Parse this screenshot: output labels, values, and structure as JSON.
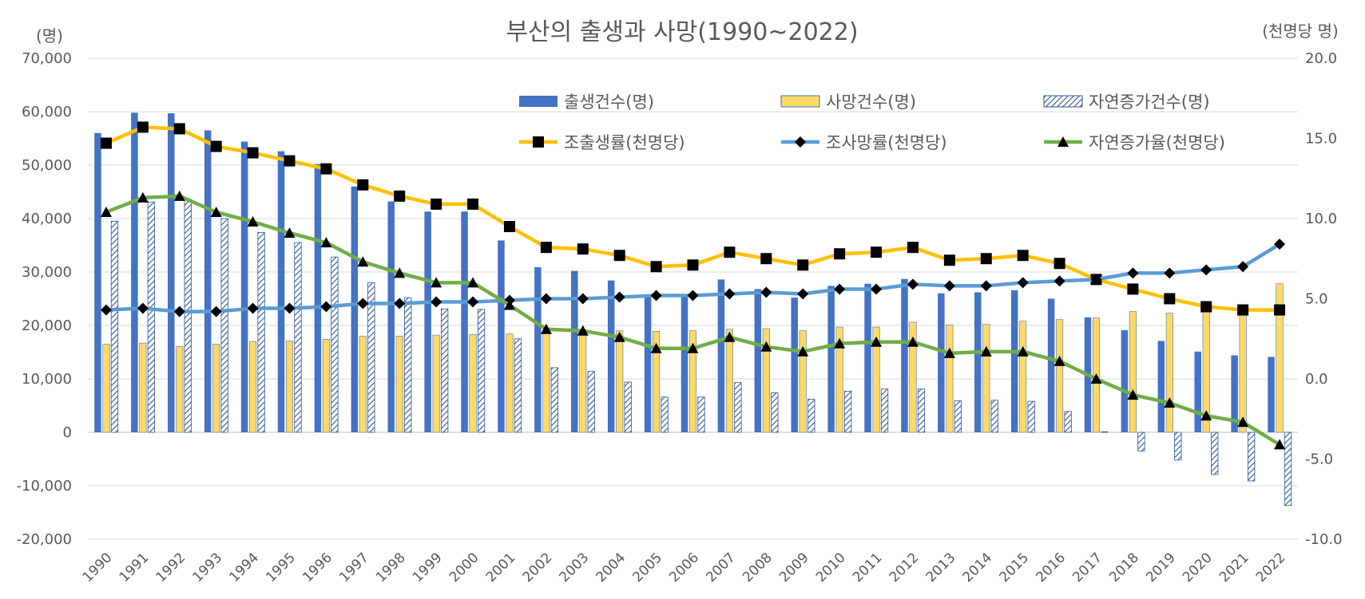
{
  "chart_data": {
    "type": "bar",
    "title": "부산의 출생과 사망(1990~2022)",
    "y_left_label": "(명)",
    "y_right_label": "(천명당 명)",
    "categories": [
      "1990",
      "1991",
      "1992",
      "1993",
      "1994",
      "1995",
      "1996",
      "1997",
      "1998",
      "1999",
      "2000",
      "2001",
      "2002",
      "2003",
      "2004",
      "2005",
      "2006",
      "2007",
      "2008",
      "2009",
      "2010",
      "2011",
      "2012",
      "2013",
      "2014",
      "2015",
      "2016",
      "2017",
      "2018",
      "2019",
      "2020",
      "2021",
      "2022"
    ],
    "y_left": {
      "range": [
        -20000,
        70000
      ],
      "ticks": [
        70000,
        60000,
        50000,
        40000,
        30000,
        20000,
        10000,
        0,
        -10000,
        -20000
      ],
      "tick_labels": [
        "70,000",
        "60,000",
        "50,000",
        "40,000",
        "30,000",
        "20,000",
        "10,000",
        "0",
        "-10,000",
        "-20,000"
      ]
    },
    "y_right": {
      "range": [
        -10,
        20
      ],
      "ticks": [
        20,
        15,
        10,
        5,
        0,
        -5,
        -10
      ],
      "tick_labels": [
        "20.0",
        "15.0",
        "10.0",
        "5.0",
        "0.0",
        "-5.0",
        "-10.0"
      ]
    },
    "grid": true,
    "legend_position": "top-right",
    "bar_series": [
      {
        "name": "출생건수(명)",
        "style": "solid",
        "color": "#4472C4",
        "values": [
          56000,
          59800,
          59700,
          56500,
          54400,
          52600,
          50200,
          46000,
          43200,
          41300,
          41300,
          35900,
          30900,
          30200,
          28400,
          25500,
          25600,
          28600,
          26800,
          25200,
          27400,
          27800,
          28700,
          26000,
          26200,
          26600,
          25000,
          21500,
          19100,
          17100,
          15100,
          14400,
          14100
        ]
      },
      {
        "name": "사망건수(명)",
        "style": "solid",
        "color": "#FFD966",
        "values": [
          16500,
          16700,
          16100,
          16500,
          17000,
          17100,
          17400,
          18000,
          18000,
          18200,
          18300,
          18400,
          18800,
          18800,
          19000,
          18900,
          19000,
          19300,
          19400,
          19000,
          19700,
          19700,
          20600,
          20100,
          20200,
          20800,
          21100,
          21400,
          22600,
          22300,
          23000,
          23500,
          27800
        ]
      },
      {
        "name": "자연증가건수(명)",
        "style": "hatched",
        "color": "#2F5597",
        "values": [
          39500,
          43100,
          43600,
          40000,
          37400,
          35500,
          32800,
          28000,
          25200,
          23100,
          23000,
          17500,
          12100,
          11400,
          9400,
          6600,
          6600,
          9300,
          7400,
          6200,
          7700,
          8100,
          8100,
          5900,
          6000,
          5800,
          3900,
          100,
          -3500,
          -5200,
          -7900,
          -9100,
          -13700
        ]
      }
    ],
    "line_series": [
      {
        "name": "조출생률(천명당)",
        "marker": "square",
        "color": "#FFC000",
        "marker_color": "#000000",
        "values": [
          14.7,
          15.7,
          15.6,
          14.5,
          14.1,
          13.6,
          13.1,
          12.1,
          11.4,
          10.9,
          10.9,
          9.5,
          8.2,
          8.1,
          7.7,
          7.0,
          7.1,
          7.9,
          7.5,
          7.1,
          7.8,
          7.9,
          8.2,
          7.4,
          7.5,
          7.7,
          7.2,
          6.2,
          5.6,
          5.0,
          4.5,
          4.3,
          4.3
        ]
      },
      {
        "name": "조사망률(천명당)",
        "marker": "diamond",
        "color": "#5B9BD5",
        "marker_color": "#000000",
        "values": [
          4.3,
          4.4,
          4.2,
          4.2,
          4.4,
          4.4,
          4.5,
          4.7,
          4.7,
          4.8,
          4.8,
          4.9,
          5.0,
          5.0,
          5.1,
          5.2,
          5.2,
          5.3,
          5.4,
          5.3,
          5.6,
          5.6,
          5.9,
          5.8,
          5.8,
          6.0,
          6.1,
          6.2,
          6.6,
          6.6,
          6.8,
          7.0,
          8.4
        ]
      },
      {
        "name": "자연증가율(천명당)",
        "marker": "triangle",
        "color": "#70AD47",
        "marker_color": "#000000",
        "values": [
          10.4,
          11.3,
          11.4,
          10.4,
          9.8,
          9.1,
          8.5,
          7.3,
          6.6,
          6.0,
          6.0,
          4.6,
          3.1,
          3.0,
          2.6,
          1.9,
          1.9,
          2.6,
          2.0,
          1.7,
          2.2,
          2.3,
          2.3,
          1.6,
          1.7,
          1.7,
          1.1,
          0.0,
          -1.0,
          -1.5,
          -2.3,
          -2.7,
          -4.1
        ]
      }
    ]
  }
}
